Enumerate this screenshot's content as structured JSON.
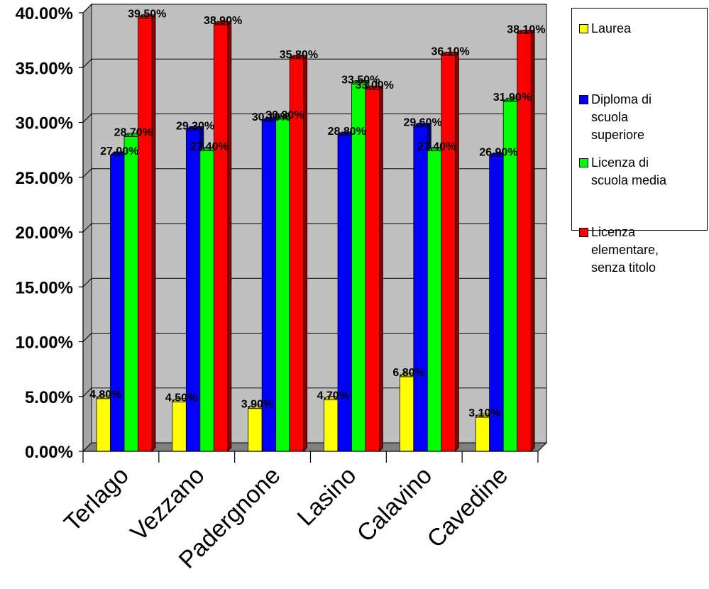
{
  "chart_data": {
    "type": "bar",
    "categories": [
      "Terlago",
      "Vezzano",
      "Padergnone",
      "Lasino",
      "Calavino",
      "Cavedine"
    ],
    "series": [
      {
        "name": "Laurea",
        "color": "#ffff00",
        "values": [
          4.8,
          4.5,
          3.9,
          4.7,
          6.8,
          3.1
        ],
        "labels": [
          "4.80%",
          "4.50%",
          "3.90%",
          "4.70%",
          "6.80%",
          "3.10%"
        ]
      },
      {
        "name": "Diploma di scuola superiore",
        "color": "#0000ff",
        "values": [
          27.0,
          29.3,
          30.1,
          28.8,
          29.6,
          26.9
        ],
        "labels": [
          "27.00%",
          "29.30%",
          "30.10%",
          "28.80%",
          "29.60%",
          "26.90%"
        ]
      },
      {
        "name": "Licenza di scuola media",
        "color": "#00ff00",
        "values": [
          28.7,
          27.4,
          30.3,
          33.5,
          27.4,
          31.9
        ],
        "labels": [
          "28.70%",
          "27.40%",
          "30.30%",
          "33.50%",
          "27.40%",
          "31.90%"
        ]
      },
      {
        "name": "Licenza elementare, senza titolo",
        "color": "#ff0000",
        "values": [
          39.5,
          38.9,
          35.8,
          33.0,
          36.1,
          38.1
        ],
        "labels": [
          "39.50%",
          "38.90%",
          "35.80%",
          "33.00%",
          "36.10%",
          "38.10%"
        ]
      }
    ],
    "ylim": [
      0,
      40
    ],
    "yticks": [
      0,
      5,
      10,
      15,
      20,
      25,
      30,
      35,
      40
    ],
    "ytick_labels": [
      "0.00%",
      "5.00%",
      "10.00%",
      "15.00%",
      "20.00%",
      "25.00%",
      "30.00%",
      "35.00%",
      "40.00%"
    ],
    "grid": true,
    "legend_position": "right",
    "plot_background": "#c0c0c0",
    "floor_color": "#808080"
  },
  "legend": {
    "items": [
      {
        "label": "Laurea",
        "color": "#ffff00"
      },
      {
        "label": "Diploma di\nscuola\nsuperiore",
        "color": "#0000ff"
      },
      {
        "label": "Licenza di\nscuola media",
        "color": "#00ff00"
      },
      {
        "label": "Licenza\nelementare,\nsenza titolo",
        "color": "#ff0000"
      }
    ]
  }
}
